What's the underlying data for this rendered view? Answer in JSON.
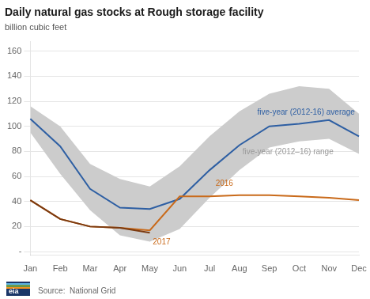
{
  "chart_data": {
    "type": "line",
    "title": "Daily natural gas stocks at Rough storage facility",
    "ylabel": "billion cubic feet",
    "source": "Source:  National Grid",
    "logo_text": "eia",
    "categories": [
      "Jan",
      "Feb",
      "Mar",
      "Apr",
      "May",
      "Jun",
      "Jul",
      "Aug",
      "Sep",
      "Oct",
      "Nov",
      "Dec"
    ],
    "series": [
      {
        "name": "five-year (2012–16) range",
        "type": "range",
        "color": "#CCCCCC",
        "lower": [
          95,
          62,
          33,
          13,
          8,
          18,
          43,
          65,
          83,
          88,
          90,
          78
        ],
        "upper": [
          116,
          100,
          70,
          58,
          52,
          68,
          92,
          112,
          126,
          132,
          130,
          110
        ]
      },
      {
        "name": "five-year (2012-16) average",
        "color": "#2E5FA3",
        "values": [
          106,
          84,
          50,
          35,
          34,
          42,
          65,
          85,
          100,
          102,
          105,
          92
        ]
      },
      {
        "name": "2016",
        "color": "#C96A1A",
        "values": [
          41,
          26,
          20,
          19,
          17,
          44,
          44,
          45,
          45,
          44,
          43,
          41
        ]
      },
      {
        "name": "2017",
        "color": "#7B3A10",
        "values": [
          41,
          26,
          20,
          19,
          15,
          null,
          null,
          null,
          null,
          null,
          null,
          null
        ]
      }
    ],
    "ylim": [
      -3,
      168
    ],
    "yticks": [
      {
        "value": 0,
        "label": "-"
      },
      20,
      40,
      60,
      80,
      100,
      120,
      140,
      160
    ],
    "grid": true,
    "annotations": [
      {
        "text": "five-year (2012-16) average",
        "x": 7.6,
        "y": 108,
        "color": "#2E5FA3"
      },
      {
        "text": "five-year (2012–16) range",
        "x": 7.1,
        "y": 76,
        "color": "#999999"
      },
      {
        "text": "2016",
        "x": 6.2,
        "y": 51,
        "color": "#C96A1A"
      },
      {
        "text": "2017",
        "x": 4.1,
        "y": 4,
        "color": "#C96A1A"
      }
    ]
  }
}
